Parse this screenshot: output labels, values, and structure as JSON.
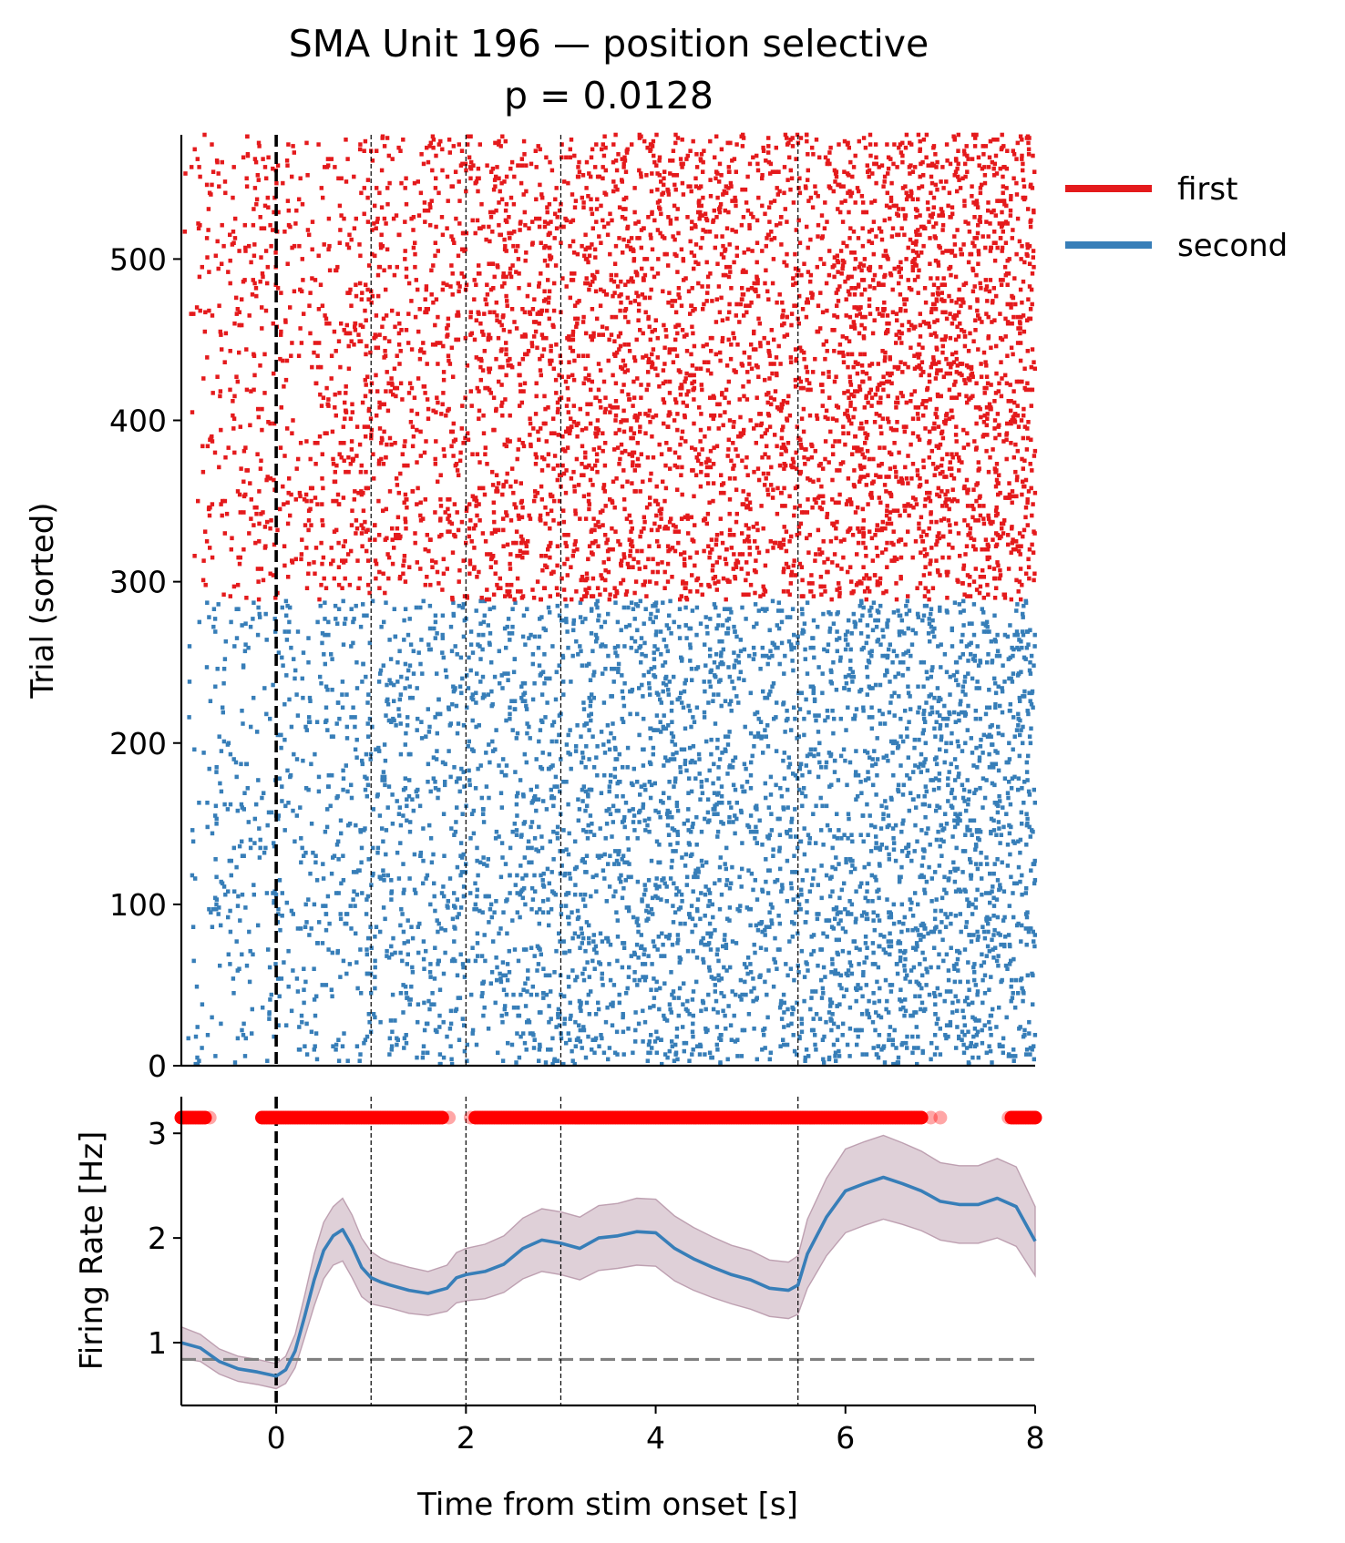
{
  "title": {
    "line1": "SMA Unit 196 — position selective",
    "line2": "p = 0.0128"
  },
  "colors": {
    "first": "#e41a1c",
    "second": "#377eb8",
    "sem_band": "#b28fa3",
    "significance_dots": "#ff0000",
    "baseline": "#808080",
    "onset_line": "#000000"
  },
  "legend": {
    "placement": "upper-right-outside",
    "items": [
      {
        "label": "first",
        "color": "#e41a1c"
      },
      {
        "label": "second",
        "color": "#377eb8"
      }
    ]
  },
  "chart_data": [
    {
      "type": "raster",
      "ylabel": "Trial (sorted)",
      "xlim": [
        -1,
        8
      ],
      "ylim": [
        0,
        577
      ],
      "yticks": [
        0,
        100,
        200,
        300,
        400,
        500
      ],
      "event_lines": [
        0,
        1,
        2,
        3,
        5.5
      ],
      "onset_line": 0,
      "series": [
        {
          "name": "second",
          "trials": [
            0,
            288
          ]
        },
        {
          "name": "first",
          "trials": [
            288,
            577
          ]
        }
      ]
    },
    {
      "type": "line",
      "xlabel": "Time from stim onset [s]",
      "ylabel": "Firing Rate [Hz]",
      "xlim": [
        -1,
        8
      ],
      "ylim": [
        0.4,
        3.35
      ],
      "xticks": [
        0,
        2,
        4,
        6,
        8
      ],
      "yticks": [
        1,
        2,
        3
      ],
      "baseline": 0.84,
      "event_lines": [
        0,
        1,
        2,
        3,
        5.5
      ],
      "onset_line": 0,
      "x": [
        -1.0,
        -0.8,
        -0.6,
        -0.4,
        -0.2,
        0.0,
        0.1,
        0.2,
        0.3,
        0.4,
        0.5,
        0.6,
        0.7,
        0.8,
        0.9,
        1.0,
        1.1,
        1.2,
        1.4,
        1.6,
        1.8,
        1.9,
        2.0,
        2.2,
        2.4,
        2.6,
        2.8,
        3.0,
        3.2,
        3.4,
        3.6,
        3.8,
        4.0,
        4.2,
        4.4,
        4.6,
        4.8,
        5.0,
        5.2,
        5.4,
        5.5,
        5.6,
        5.8,
        6.0,
        6.2,
        6.4,
        6.6,
        6.8,
        7.0,
        7.2,
        7.4,
        7.6,
        7.8,
        8.0
      ],
      "y": [
        1.0,
        0.95,
        0.82,
        0.75,
        0.72,
        0.68,
        0.74,
        0.92,
        1.25,
        1.6,
        1.88,
        2.02,
        2.08,
        1.92,
        1.72,
        1.62,
        1.58,
        1.55,
        1.5,
        1.47,
        1.52,
        1.62,
        1.65,
        1.68,
        1.75,
        1.9,
        1.98,
        1.95,
        1.9,
        2.0,
        2.02,
        2.06,
        2.05,
        1.9,
        1.8,
        1.72,
        1.65,
        1.6,
        1.52,
        1.5,
        1.55,
        1.85,
        2.2,
        2.45,
        2.52,
        2.58,
        2.52,
        2.45,
        2.35,
        2.32,
        2.32,
        2.38,
        2.3,
        1.97
      ],
      "sem": [
        0.15,
        0.13,
        0.12,
        0.12,
        0.12,
        0.12,
        0.13,
        0.16,
        0.2,
        0.25,
        0.27,
        0.28,
        0.3,
        0.3,
        0.28,
        0.25,
        0.23,
        0.22,
        0.22,
        0.21,
        0.22,
        0.24,
        0.25,
        0.26,
        0.27,
        0.29,
        0.3,
        0.3,
        0.3,
        0.31,
        0.31,
        0.32,
        0.32,
        0.31,
        0.3,
        0.29,
        0.28,
        0.28,
        0.27,
        0.27,
        0.28,
        0.33,
        0.37,
        0.4,
        0.4,
        0.4,
        0.39,
        0.38,
        0.37,
        0.37,
        0.37,
        0.38,
        0.38,
        0.33
      ],
      "significance_marker_y": 3.15,
      "significant_intervals": [
        [
          -1.0,
          -0.75
        ],
        [
          -0.15,
          1.75
        ],
        [
          2.1,
          6.8
        ],
        [
          7.75,
          8.0
        ]
      ],
      "faint_significant_points": [
        -0.8,
        -0.7,
        1.82,
        2.05,
        6.9,
        7.0,
        7.72
      ]
    }
  ]
}
